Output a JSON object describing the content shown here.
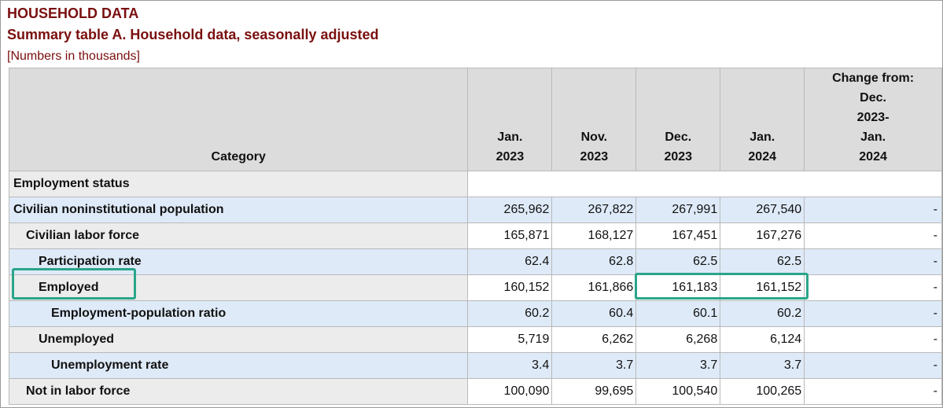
{
  "header": {
    "title": "HOUSEHOLD DATA",
    "subtitle": "Summary table A. Household data, seasonally adjusted",
    "note": "[Numbers in thousands]"
  },
  "table": {
    "columns": {
      "category": "Category",
      "jan2023": [
        "Jan.",
        "2023"
      ],
      "nov2023": [
        "Nov.",
        "2023"
      ],
      "dec2023": [
        "Dec.",
        "2023"
      ],
      "jan2024": [
        "Jan.",
        "2024"
      ],
      "change": [
        "Change from:",
        "Dec.",
        "2023-",
        "Jan.",
        "2024"
      ]
    },
    "section": "Employment status",
    "rows": [
      {
        "label": "Civilian noninstitutional population",
        "values": [
          "265,962",
          "267,822",
          "267,991",
          "267,540"
        ],
        "change": "-"
      },
      {
        "label": "Civilian labor force",
        "values": [
          "165,871",
          "168,127",
          "167,451",
          "167,276"
        ],
        "change": "-"
      },
      {
        "label": "Participation rate",
        "values": [
          "62.4",
          "62.8",
          "62.5",
          "62.5"
        ],
        "change": "-"
      },
      {
        "label": "Employed",
        "values": [
          "160,152",
          "161,866",
          "161,183",
          "161,152"
        ],
        "change": "-"
      },
      {
        "label": "Employment-population ratio",
        "values": [
          "60.2",
          "60.4",
          "60.1",
          "60.2"
        ],
        "change": "-"
      },
      {
        "label": "Unemployed",
        "values": [
          "5,719",
          "6,262",
          "6,268",
          "6,124"
        ],
        "change": "-"
      },
      {
        "label": "Unemployment rate",
        "values": [
          "3.4",
          "3.7",
          "3.7",
          "3.7"
        ],
        "change": "-"
      },
      {
        "label": "Not in labor force",
        "values": [
          "100,090",
          "99,695",
          "100,540",
          "100,265"
        ],
        "change": "-"
      }
    ]
  },
  "highlight_color": "#2aa58a"
}
